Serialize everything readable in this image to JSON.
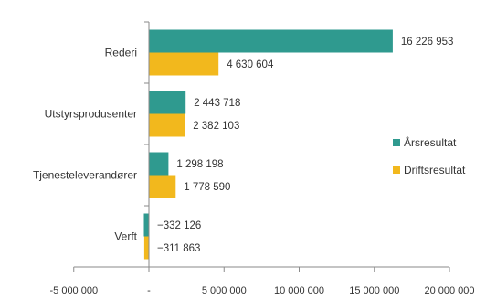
{
  "chart_data": {
    "type": "bar",
    "orientation": "horizontal",
    "categories": [
      "Rederi",
      "Utstyrsprodusenter",
      "Tjenesteleverandører",
      "Verft"
    ],
    "series": [
      {
        "name": "Årsresultat",
        "color": "#2f9a8f",
        "values": [
          16226953,
          2443718,
          1298198,
          -332126
        ],
        "labels": [
          "16 226 953",
          "2 443 718",
          "1 298 198",
          "−332 126"
        ]
      },
      {
        "name": "Driftsresultat",
        "color": "#f2b81d",
        "values": [
          4630604,
          2382103,
          1778590,
          -311863
        ],
        "labels": [
          "4 630 604",
          "2 382 103",
          "1 778 590",
          "−311 863"
        ]
      }
    ],
    "xlim": [
      -5000000,
      20000000
    ],
    "xticks": [
      -5000000,
      0,
      5000000,
      10000000,
      15000000,
      20000000
    ],
    "xtick_labels": [
      "-5 000 000",
      "-",
      "5 000 000",
      "10 000 000",
      "15 000 000",
      "20 000 000"
    ],
    "legend_position": "right",
    "grid": false,
    "title": "",
    "xlabel": "",
    "ylabel": ""
  }
}
